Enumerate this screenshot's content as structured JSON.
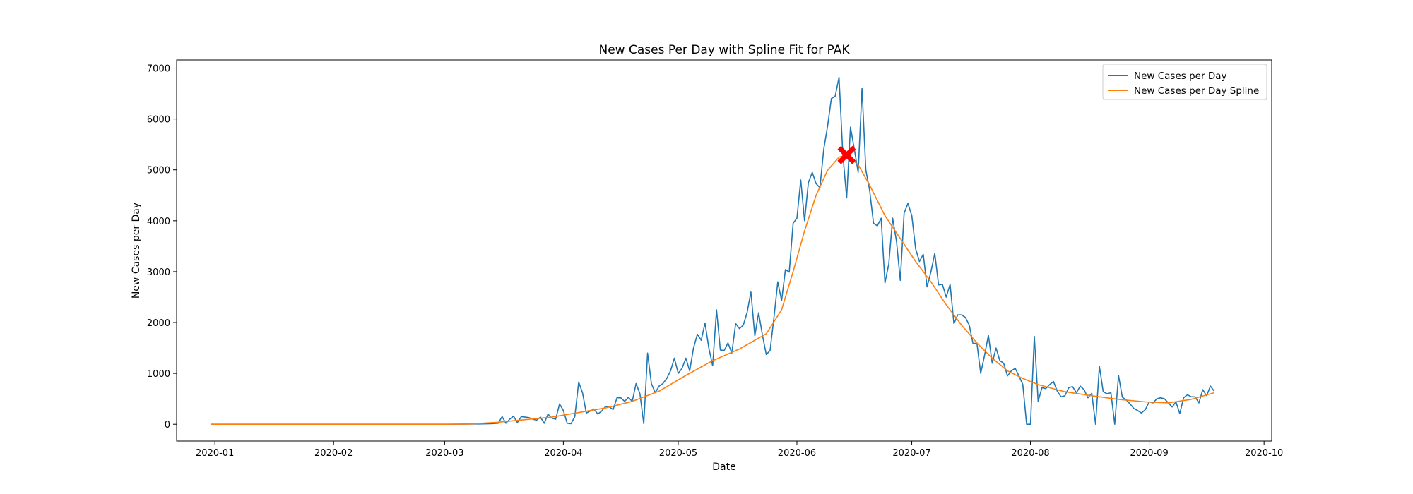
{
  "chart_data": {
    "type": "line",
    "title": "New Cases Per Day with Spline Fit for PAK",
    "xlabel": "Date",
    "ylabel": "New Cases per Day",
    "xlim": [
      "2019-12-22",
      "2020-10-03"
    ],
    "ylim": [
      -330,
      7160
    ],
    "x_ticks": [
      "2020-01",
      "2020-02",
      "2020-03",
      "2020-04",
      "2020-05",
      "2020-06",
      "2020-07",
      "2020-08",
      "2020-09",
      "2020-10"
    ],
    "y_ticks": [
      0,
      1000,
      2000,
      3000,
      4000,
      5000,
      6000,
      7000
    ],
    "grid": false,
    "legend": {
      "position": "top-right"
    },
    "series": [
      {
        "name": "New Cases per Day",
        "color": "#1f77b4",
        "points": [
          [
            "2019-12-31",
            0
          ],
          [
            "2020-01-15",
            0
          ],
          [
            "2020-02-01",
            0
          ],
          [
            "2020-02-15",
            0
          ],
          [
            "2020-03-01",
            0
          ],
          [
            "2020-03-05",
            2
          ],
          [
            "2020-03-10",
            5
          ],
          [
            "2020-03-13",
            10
          ],
          [
            "2020-03-15",
            20
          ],
          [
            "2020-03-16",
            150
          ],
          [
            "2020-03-17",
            20
          ],
          [
            "2020-03-18",
            100
          ],
          [
            "2020-03-19",
            160
          ],
          [
            "2020-03-20",
            30
          ],
          [
            "2020-03-21",
            150
          ],
          [
            "2020-03-22",
            140
          ],
          [
            "2020-03-23",
            130
          ],
          [
            "2020-03-24",
            100
          ],
          [
            "2020-03-25",
            80
          ],
          [
            "2020-03-26",
            140
          ],
          [
            "2020-03-27",
            20
          ],
          [
            "2020-03-28",
            200
          ],
          [
            "2020-03-29",
            120
          ],
          [
            "2020-03-30",
            100
          ],
          [
            "2020-03-31",
            400
          ],
          [
            "2020-04-01",
            270
          ],
          [
            "2020-04-02",
            20
          ],
          [
            "2020-04-03",
            10
          ],
          [
            "2020-04-04",
            150
          ],
          [
            "2020-04-05",
            830
          ],
          [
            "2020-04-06",
            620
          ],
          [
            "2020-04-07",
            220
          ],
          [
            "2020-04-08",
            260
          ],
          [
            "2020-04-09",
            300
          ],
          [
            "2020-04-10",
            200
          ],
          [
            "2020-04-11",
            260
          ],
          [
            "2020-04-12",
            350
          ],
          [
            "2020-04-13",
            340
          ],
          [
            "2020-04-14",
            290
          ],
          [
            "2020-04-15",
            520
          ],
          [
            "2020-04-16",
            520
          ],
          [
            "2020-04-17",
            450
          ],
          [
            "2020-04-18",
            530
          ],
          [
            "2020-04-19",
            450
          ],
          [
            "2020-04-20",
            800
          ],
          [
            "2020-04-21",
            600
          ],
          [
            "2020-04-22",
            10
          ],
          [
            "2020-04-23",
            1400
          ],
          [
            "2020-04-24",
            800
          ],
          [
            "2020-04-25",
            620
          ],
          [
            "2020-04-26",
            750
          ],
          [
            "2020-04-27",
            800
          ],
          [
            "2020-04-28",
            900
          ],
          [
            "2020-04-29",
            1050
          ],
          [
            "2020-04-30",
            1300
          ],
          [
            "2020-05-01",
            1000
          ],
          [
            "2020-05-02",
            1100
          ],
          [
            "2020-05-03",
            1300
          ],
          [
            "2020-05-04",
            1050
          ],
          [
            "2020-05-05",
            1500
          ],
          [
            "2020-05-06",
            1770
          ],
          [
            "2020-05-07",
            1650
          ],
          [
            "2020-05-08",
            1990
          ],
          [
            "2020-05-09",
            1500
          ],
          [
            "2020-05-10",
            1150
          ],
          [
            "2020-05-11",
            2250
          ],
          [
            "2020-05-12",
            1460
          ],
          [
            "2020-05-13",
            1450
          ],
          [
            "2020-05-14",
            1600
          ],
          [
            "2020-05-15",
            1400
          ],
          [
            "2020-05-16",
            1980
          ],
          [
            "2020-05-17",
            1880
          ],
          [
            "2020-05-18",
            1950
          ],
          [
            "2020-05-19",
            2200
          ],
          [
            "2020-05-20",
            2600
          ],
          [
            "2020-05-21",
            1740
          ],
          [
            "2020-05-22",
            2190
          ],
          [
            "2020-05-23",
            1750
          ],
          [
            "2020-05-24",
            1370
          ],
          [
            "2020-05-25",
            1450
          ],
          [
            "2020-05-26",
            2100
          ],
          [
            "2020-05-27",
            2800
          ],
          [
            "2020-05-28",
            2430
          ],
          [
            "2020-05-29",
            3040
          ],
          [
            "2020-05-30",
            2990
          ],
          [
            "2020-05-31",
            3950
          ],
          [
            "2020-06-01",
            4050
          ],
          [
            "2020-06-02",
            4800
          ],
          [
            "2020-06-03",
            4000
          ],
          [
            "2020-06-04",
            4750
          ],
          [
            "2020-06-05",
            4950
          ],
          [
            "2020-06-06",
            4730
          ],
          [
            "2020-06-07",
            4650
          ],
          [
            "2020-06-08",
            5400
          ],
          [
            "2020-06-09",
            5850
          ],
          [
            "2020-06-10",
            6400
          ],
          [
            "2020-06-11",
            6450
          ],
          [
            "2020-06-12",
            6820
          ],
          [
            "2020-06-13",
            5300
          ],
          [
            "2020-06-14",
            4450
          ],
          [
            "2020-06-15",
            5840
          ],
          [
            "2020-06-16",
            5400
          ],
          [
            "2020-06-17",
            4950
          ],
          [
            "2020-06-18",
            6600
          ],
          [
            "2020-06-19",
            5000
          ],
          [
            "2020-06-20",
            4600
          ],
          [
            "2020-06-21",
            3950
          ],
          [
            "2020-06-22",
            3900
          ],
          [
            "2020-06-23",
            4050
          ],
          [
            "2020-06-24",
            2780
          ],
          [
            "2020-06-25",
            3150
          ],
          [
            "2020-06-26",
            4050
          ],
          [
            "2020-06-27",
            3600
          ],
          [
            "2020-06-28",
            2830
          ],
          [
            "2020-06-29",
            4150
          ],
          [
            "2020-06-30",
            4340
          ],
          [
            "2020-07-01",
            4100
          ],
          [
            "2020-07-02",
            3450
          ],
          [
            "2020-07-03",
            3200
          ],
          [
            "2020-07-04",
            3340
          ],
          [
            "2020-07-05",
            2700
          ],
          [
            "2020-07-06",
            3000
          ],
          [
            "2020-07-07",
            3360
          ],
          [
            "2020-07-08",
            2740
          ],
          [
            "2020-07-09",
            2750
          ],
          [
            "2020-07-10",
            2500
          ],
          [
            "2020-07-11",
            2750
          ],
          [
            "2020-07-12",
            1980
          ],
          [
            "2020-07-13",
            2150
          ],
          [
            "2020-07-14",
            2150
          ],
          [
            "2020-07-15",
            2100
          ],
          [
            "2020-07-16",
            1950
          ],
          [
            "2020-07-17",
            1580
          ],
          [
            "2020-07-18",
            1600
          ],
          [
            "2020-07-19",
            1000
          ],
          [
            "2020-07-20",
            1350
          ],
          [
            "2020-07-21",
            1750
          ],
          [
            "2020-07-22",
            1200
          ],
          [
            "2020-07-23",
            1500
          ],
          [
            "2020-07-24",
            1250
          ],
          [
            "2020-07-25",
            1200
          ],
          [
            "2020-07-26",
            950
          ],
          [
            "2020-07-27",
            1050
          ],
          [
            "2020-07-28",
            1100
          ],
          [
            "2020-07-29",
            950
          ],
          [
            "2020-07-30",
            780
          ],
          [
            "2020-07-31",
            0
          ],
          [
            "2020-08-01",
            0
          ],
          [
            "2020-08-02",
            1730
          ],
          [
            "2020-08-03",
            450
          ],
          [
            "2020-08-04",
            720
          ],
          [
            "2020-08-05",
            700
          ],
          [
            "2020-08-06",
            780
          ],
          [
            "2020-08-07",
            840
          ],
          [
            "2020-08-08",
            650
          ],
          [
            "2020-08-09",
            540
          ],
          [
            "2020-08-10",
            560
          ],
          [
            "2020-08-11",
            720
          ],
          [
            "2020-08-12",
            740
          ],
          [
            "2020-08-13",
            620
          ],
          [
            "2020-08-14",
            750
          ],
          [
            "2020-08-15",
            680
          ],
          [
            "2020-08-16",
            520
          ],
          [
            "2020-08-17",
            610
          ],
          [
            "2020-08-18",
            0
          ],
          [
            "2020-08-19",
            1140
          ],
          [
            "2020-08-20",
            640
          ],
          [
            "2020-08-21",
            600
          ],
          [
            "2020-08-22",
            620
          ],
          [
            "2020-08-23",
            0
          ],
          [
            "2020-08-24",
            960
          ],
          [
            "2020-08-25",
            530
          ],
          [
            "2020-08-26",
            480
          ],
          [
            "2020-08-27",
            400
          ],
          [
            "2020-08-28",
            310
          ],
          [
            "2020-08-29",
            270
          ],
          [
            "2020-08-30",
            220
          ],
          [
            "2020-08-31",
            290
          ],
          [
            "2020-09-01",
            440
          ],
          [
            "2020-09-02",
            420
          ],
          [
            "2020-09-03",
            500
          ],
          [
            "2020-09-04",
            520
          ],
          [
            "2020-09-05",
            500
          ],
          [
            "2020-09-06",
            420
          ],
          [
            "2020-09-07",
            340
          ],
          [
            "2020-09-08",
            440
          ],
          [
            "2020-09-09",
            210
          ],
          [
            "2020-09-10",
            520
          ],
          [
            "2020-09-11",
            580
          ],
          [
            "2020-09-12",
            540
          ],
          [
            "2020-09-13",
            540
          ],
          [
            "2020-09-14",
            420
          ],
          [
            "2020-09-15",
            680
          ],
          [
            "2020-09-16",
            560
          ],
          [
            "2020-09-17",
            750
          ],
          [
            "2020-09-18",
            650
          ]
        ]
      },
      {
        "name": "New Cases per Day Spline",
        "color": "#ff7f0e",
        "points": [
          [
            "2019-12-31",
            0
          ],
          [
            "2020-01-15",
            0
          ],
          [
            "2020-02-01",
            0
          ],
          [
            "2020-02-15",
            0
          ],
          [
            "2020-03-01",
            0
          ],
          [
            "2020-03-08",
            5
          ],
          [
            "2020-03-15",
            40
          ],
          [
            "2020-03-22",
            90
          ],
          [
            "2020-03-29",
            140
          ],
          [
            "2020-04-05",
            230
          ],
          [
            "2020-04-12",
            320
          ],
          [
            "2020-04-19",
            450
          ],
          [
            "2020-04-26",
            650
          ],
          [
            "2020-05-03",
            960
          ],
          [
            "2020-05-10",
            1250
          ],
          [
            "2020-05-17",
            1480
          ],
          [
            "2020-05-24",
            1780
          ],
          [
            "2020-05-28",
            2250
          ],
          [
            "2020-05-31",
            3000
          ],
          [
            "2020-06-03",
            3800
          ],
          [
            "2020-06-06",
            4500
          ],
          [
            "2020-06-09",
            4990
          ],
          [
            "2020-06-12",
            5250
          ],
          [
            "2020-06-14",
            5290
          ],
          [
            "2020-06-17",
            5100
          ],
          [
            "2020-06-20",
            4700
          ],
          [
            "2020-06-24",
            4100
          ],
          [
            "2020-06-28",
            3650
          ],
          [
            "2020-07-02",
            3200
          ],
          [
            "2020-07-06",
            2800
          ],
          [
            "2020-07-10",
            2350
          ],
          [
            "2020-07-14",
            1950
          ],
          [
            "2020-07-18",
            1600
          ],
          [
            "2020-07-22",
            1300
          ],
          [
            "2020-07-26",
            1050
          ],
          [
            "2020-07-30",
            900
          ],
          [
            "2020-08-03",
            780
          ],
          [
            "2020-08-10",
            640
          ],
          [
            "2020-08-17",
            560
          ],
          [
            "2020-08-24",
            490
          ],
          [
            "2020-08-31",
            440
          ],
          [
            "2020-09-06",
            420
          ],
          [
            "2020-09-12",
            490
          ],
          [
            "2020-09-18",
            620
          ]
        ]
      }
    ],
    "annotations": [
      {
        "type": "marker",
        "symbol": "X",
        "color": "#ff0000",
        "x": "2020-06-14",
        "y": 5290
      }
    ]
  }
}
